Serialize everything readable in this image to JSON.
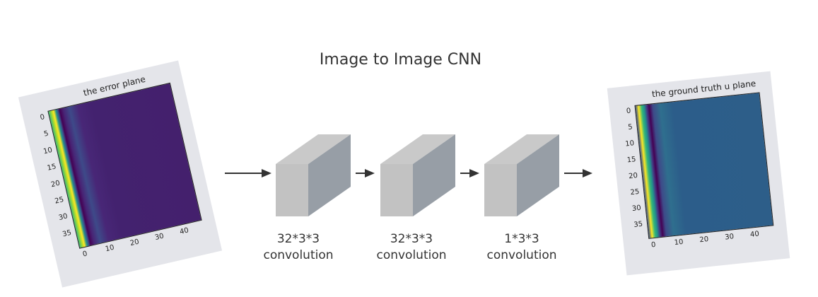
{
  "title": "Image to Image CNN",
  "input_plot": {
    "title": "the error plane",
    "y_ticks": [
      "0",
      "5",
      "10",
      "15",
      "20",
      "25",
      "30",
      "35"
    ],
    "x_ticks": [
      "0",
      "10",
      "20",
      "30",
      "40"
    ]
  },
  "output_plot": {
    "title": "the ground truth u plane",
    "y_ticks": [
      "0",
      "5",
      "10",
      "15",
      "20",
      "25",
      "30",
      "35"
    ],
    "x_ticks": [
      "0",
      "10",
      "20",
      "30",
      "40"
    ]
  },
  "layers": [
    {
      "size": "32*3*3",
      "op": "convolution"
    },
    {
      "size": "32*3*3",
      "op": "convolution"
    },
    {
      "size": "1*3*3",
      "op": "convolution"
    }
  ],
  "colors": {
    "box_front": "#c2c2c2",
    "box_top": "#c8c8c8",
    "box_side": "#979ea6",
    "arrow": "#333333"
  }
}
